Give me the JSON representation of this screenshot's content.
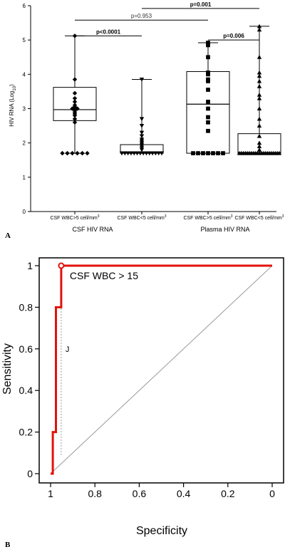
{
  "panels": {
    "a_letter": "A",
    "b_letter": "B"
  },
  "colors": {
    "ink": "#000000",
    "roc_curve": "#e3120b",
    "diagonal": "#9a9a9a",
    "guide": "#9a9a9a"
  },
  "chart_data": [
    {
      "type": "box",
      "title": "",
      "ylabel": "HIV RNA (Log",
      "ylabel_sub": "10",
      "ylabel_end": ")",
      "ylim": [
        0,
        6
      ],
      "yticks": [
        0,
        1,
        2,
        3,
        4,
        5,
        6
      ],
      "categories": [
        {
          "label": "CSF WBC>5 cell/mm",
          "sup": "3"
        },
        {
          "label": "CSF WBC<5 cell/mm",
          "sup": "3"
        },
        {
          "label": "CSF WBC>5 cell/mm",
          "sup": "3"
        },
        {
          "label": "CSF WBC<5 cell/mm",
          "sup": "3"
        }
      ],
      "group_labels": [
        "CSF HIV RNA",
        "Plasma HIV RNA"
      ],
      "boxes": [
        {
          "marker": "diamond",
          "whisker_low": 1.7,
          "q1": 2.65,
          "median": 2.97,
          "q3": 3.62,
          "whisker_high": 5.12,
          "points": [
            1.7,
            1.7,
            1.7,
            1.7,
            1.7,
            1.7,
            2.6,
            2.7,
            2.8,
            2.85,
            2.9,
            2.95,
            3.0,
            3.0,
            3.05,
            3.1,
            3.2,
            3.3,
            3.45,
            3.85,
            5.12
          ]
        },
        {
          "marker": "triangle-down",
          "whisker_low": 1.7,
          "q1": 1.7,
          "median": 1.72,
          "q3": 1.95,
          "whisker_high": 3.85,
          "points": [
            1.7,
            1.7,
            1.7,
            1.7,
            1.7,
            1.7,
            1.7,
            1.7,
            1.7,
            1.7,
            1.7,
            1.7,
            1.7,
            1.7,
            1.8,
            1.85,
            1.9,
            1.95,
            2.0,
            2.05,
            2.1,
            2.2,
            2.3,
            2.5,
            2.7,
            3.85
          ]
        },
        {
          "marker": "square",
          "whisker_low": 1.7,
          "q1": 1.7,
          "median": 3.13,
          "q3": 4.08,
          "whisker_high": 4.92,
          "points": [
            1.7,
            1.7,
            1.7,
            1.7,
            1.7,
            1.7,
            1.7,
            2.35,
            2.6,
            2.75,
            3.0,
            3.2,
            3.55,
            3.8,
            3.85,
            4.0,
            4.05,
            4.5,
            4.85,
            4.92
          ]
        },
        {
          "marker": "triangle-up",
          "whisker_low": 1.7,
          "q1": 1.7,
          "median": 1.72,
          "q3": 2.27,
          "whisker_high": 5.4,
          "points": [
            1.7,
            1.7,
            1.7,
            1.7,
            1.7,
            1.7,
            1.7,
            1.7,
            1.7,
            1.7,
            1.7,
            1.7,
            1.7,
            1.7,
            1.7,
            1.7,
            1.7,
            1.7,
            1.7,
            1.7,
            1.7,
            1.8,
            1.9,
            2.0,
            2.2,
            2.5,
            2.7,
            3.0,
            3.3,
            3.4,
            3.65,
            3.8,
            3.95,
            4.05,
            4.5,
            5.3,
            5.4
          ]
        }
      ],
      "comparisons": [
        {
          "label": "p<0.0001",
          "from": 1,
          "to": 2,
          "bold": true,
          "y": 5.12
        },
        {
          "label": "p=0.953",
          "from": 1,
          "to": 3,
          "bold": false,
          "y": 5.58
        },
        {
          "label": "p=0.006",
          "from": 3,
          "to": 4,
          "bold": true,
          "y": 5.0
        },
        {
          "label": "p=0.001",
          "from": 2,
          "to": 4,
          "bold": true,
          "y": 5.92
        }
      ]
    },
    {
      "type": "line",
      "title": "",
      "xlabel": "Specificity",
      "ylabel": "Sensitivity",
      "xlim": [
        1,
        0
      ],
      "ylim": [
        0,
        1
      ],
      "xticks": [
        1,
        0.8,
        0.6,
        0.4,
        0.2,
        0
      ],
      "xtick_labels": [
        "1",
        "0.8",
        "0.6",
        "0.4",
        "0.2",
        "0"
      ],
      "yticks": [
        0,
        0.2,
        0.4,
        0.6,
        0.8,
        1
      ],
      "ytick_labels": [
        "0",
        "0.2",
        "0.4",
        "0.6",
        "0.8",
        "1"
      ],
      "series": [
        {
          "x": [
            1,
            0.99,
            0.99,
            0.976,
            0.976,
            0.952,
            0.952,
            0.952,
            0
          ],
          "y": [
            0,
            0,
            0.2,
            0.2,
            0.8,
            0.8,
            1.0,
            1.0,
            1.0
          ]
        }
      ],
      "reference_line": {
        "x": [
          1,
          0
        ],
        "y": [
          0,
          1
        ]
      },
      "threshold_point": {
        "x": 0.952,
        "y": 1.0,
        "label": "CSF WBC > 15"
      },
      "youden_label": "J",
      "youden_x": 0.952
    }
  ]
}
